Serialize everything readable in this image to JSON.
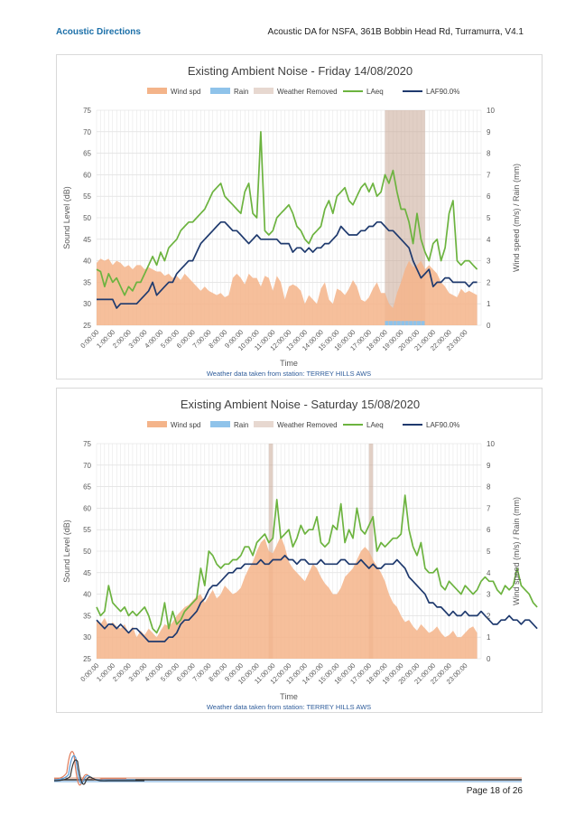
{
  "header": {
    "brand": "Acoustic Directions",
    "title": "Acoustic DA for NSFA, 361B Bobbin Head Rd, Turramurra, V4.1"
  },
  "footer": {
    "page": "Page 18 of 26"
  },
  "colors": {
    "wind": "#f4b48a",
    "rain": "#8fc3ea",
    "weather_removed": "#c9a896",
    "laeq": "#6cb33f",
    "laf90": "#1f3a6e"
  },
  "chart_data": [
    {
      "type": "line",
      "title": "Existing Ambient Noise - Friday 14/08/2020",
      "xlabel": "Time",
      "ylabel": "Sound Level (dB)",
      "y2label": "Wind speed (m/s) / Rain (mm)",
      "ylim": [
        25,
        75
      ],
      "y2lim": [
        0,
        10
      ],
      "yticks": [
        25,
        30,
        35,
        40,
        45,
        50,
        55,
        60,
        65,
        70,
        75
      ],
      "y2ticks": [
        0,
        1,
        2,
        3,
        4,
        5,
        6,
        7,
        8,
        9,
        10
      ],
      "xticks": [
        "0:00:00",
        "1:00:00",
        "2:00:00",
        "3:00:00",
        "4:00:00",
        "5:00:00",
        "6:00:00",
        "7:00:00",
        "8:00:00",
        "9:00:00",
        "10:00:00",
        "11:00:00",
        "12:00:00",
        "13:00:00",
        "14:00:00",
        "15:00:00",
        "16:00:00",
        "17:00:00",
        "18:00:00",
        "19:00:00",
        "20:00:00",
        "21:00:00",
        "22:00:00",
        "23:00:00"
      ],
      "legend": [
        "Wind spd",
        "Rain",
        "Weather Removed",
        "LAeq",
        "LAF90.0%"
      ],
      "legend_position": "top",
      "grid": true,
      "note": "Weather data taken from station: TERREY HILLS AWS",
      "weather_removed": [
        [
          18.0,
          20.5
        ]
      ],
      "rain": [
        [
          18.0,
          0.2
        ],
        [
          18.25,
          0.2
        ],
        [
          18.5,
          0.2
        ],
        [
          18.75,
          0.2
        ],
        [
          19.0,
          0.2
        ],
        [
          19.25,
          0.2
        ],
        [
          19.5,
          0.2
        ],
        [
          19.75,
          0.2
        ],
        [
          20.0,
          0.2
        ],
        [
          20.25,
          0.2
        ]
      ],
      "series": [
        {
          "name": "Wind spd",
          "x_step": 0.25,
          "values": [
            2.9,
            3.1,
            3.0,
            3.1,
            2.8,
            3.0,
            2.9,
            2.7,
            2.8,
            2.6,
            2.8,
            2.8,
            2.6,
            2.7,
            2.6,
            2.5,
            2.5,
            2.3,
            2.4,
            2.2,
            2.3,
            2.1,
            2.4,
            2.2,
            2.0,
            1.8,
            1.6,
            1.8,
            1.6,
            1.5,
            1.4,
            1.5,
            1.3,
            1.4,
            2.2,
            2.4,
            2.2,
            1.9,
            2.4,
            2.2,
            2.2,
            1.8,
            2.3,
            2.2,
            1.6,
            2.3,
            2.0,
            1.2,
            1.8,
            1.9,
            1.8,
            1.6,
            1.0,
            1.4,
            1.2,
            1.0,
            1.7,
            2.0,
            1.2,
            1.0,
            1.7,
            1.6,
            1.4,
            1.7,
            2.1,
            1.8,
            1.2,
            1.1,
            1.3,
            1.7,
            2.0,
            1.5,
            1.5,
            1.0,
            0.8,
            1.5,
            2.0,
            2.6,
            3.0,
            2.7,
            2.8,
            3.0,
            2.6,
            2.8,
            2.6,
            2.4,
            2.0,
            1.8,
            1.5,
            1.4,
            1.3,
            1.7,
            1.5,
            1.6,
            1.5,
            1.4
          ]
        },
        {
          "name": "LAeq",
          "x_step": 0.25,
          "values": [
            38,
            37.5,
            34,
            37,
            35,
            36,
            34,
            32,
            34,
            33,
            35,
            35,
            37,
            39,
            41,
            39,
            42,
            40,
            43,
            44,
            45,
            47,
            48,
            49,
            49,
            50,
            51,
            52,
            54,
            56,
            57,
            58,
            55,
            54,
            53,
            52,
            51,
            56,
            58,
            51,
            50,
            70,
            47,
            46,
            47,
            50,
            51,
            52,
            53,
            51,
            48,
            47,
            45,
            44,
            46,
            47,
            48,
            52,
            54,
            51,
            55,
            56,
            57,
            54,
            53,
            55,
            57,
            58,
            56,
            58,
            55,
            56,
            60,
            58,
            61,
            56,
            52,
            52,
            49,
            44,
            51,
            45,
            42,
            40,
            44,
            45,
            40,
            43,
            51,
            54,
            40,
            39,
            40,
            40,
            39,
            38
          ]
        },
        {
          "name": "LAF90.0%",
          "x_step": 0.25,
          "values": [
            31,
            31,
            31,
            31,
            31,
            29,
            30,
            30,
            30,
            30,
            30,
            31,
            32,
            33,
            35,
            32,
            33,
            34,
            35,
            35,
            37,
            38,
            39,
            40,
            40,
            42,
            44,
            45,
            46,
            47,
            48,
            49,
            49,
            48,
            47,
            47,
            46,
            45,
            44,
            45,
            46,
            45,
            45,
            45,
            45,
            45,
            44,
            44,
            44,
            42,
            43,
            43,
            42,
            43,
            42,
            43,
            43,
            44,
            44,
            45,
            46,
            48,
            47,
            46,
            46,
            46,
            47,
            47,
            48,
            48,
            49,
            49,
            48,
            47,
            47,
            46,
            45,
            44,
            43,
            40,
            38,
            36,
            37,
            38,
            34,
            35,
            35,
            36,
            36,
            35,
            35,
            35,
            35,
            34,
            35,
            35
          ]
        }
      ]
    },
    {
      "type": "line",
      "title": "Existing Ambient Noise - Saturday 15/08/2020",
      "xlabel": "Time",
      "ylabel": "Sound Level (dB)",
      "y2label": "Wind speed (m/s) / Rain (mm)",
      "ylim": [
        25,
        75
      ],
      "y2lim": [
        0,
        10
      ],
      "yticks": [
        25,
        30,
        35,
        40,
        45,
        50,
        55,
        60,
        65,
        70,
        75
      ],
      "y2ticks": [
        0,
        1,
        2,
        3,
        4,
        5,
        6,
        7,
        8,
        9,
        10
      ],
      "xticks": [
        "0:00:00",
        "1:00:00",
        "2:00:00",
        "3:00:00",
        "4:00:00",
        "5:00:00",
        "6:00:00",
        "7:00:00",
        "8:00:00",
        "9:00:00",
        "10:00:00",
        "11:00:00",
        "12:00:00",
        "13:00:00",
        "14:00:00",
        "15:00:00",
        "16:00:00",
        "17:00:00",
        "18:00:00",
        "19:00:00",
        "20:00:00",
        "21:00:00",
        "22:00:00",
        "23:00:00"
      ],
      "legend": [
        "Wind spd",
        "Rain",
        "Weather Removed",
        "LAeq",
        "LAF90.0%"
      ],
      "legend_position": "top",
      "grid": true,
      "note": "Weather data taken from station: TERREY HILLS AWS",
      "weather_removed": [
        [
          10.75,
          11.0
        ],
        [
          17.0,
          17.25
        ]
      ],
      "rain": [],
      "series": [
        {
          "name": "Wind spd",
          "x_step": 0.25,
          "values": [
            1.8,
            1.6,
            1.9,
            1.5,
            1.7,
            1.5,
            1.4,
            1.6,
            1.2,
            1.5,
            1.0,
            1.3,
            1.1,
            1.4,
            1.2,
            1.0,
            1.3,
            1.6,
            1.5,
            1.7,
            2.0,
            2.2,
            2.4,
            2.5,
            2.7,
            2.9,
            3.0,
            2.6,
            2.9,
            3.2,
            2.8,
            3.0,
            3.4,
            3.2,
            3.0,
            3.1,
            3.3,
            3.8,
            4.2,
            4.5,
            5.0,
            5.4,
            5.6,
            5.0,
            4.9,
            5.3,
            5.7,
            5.2,
            4.5,
            4.2,
            4.0,
            3.8,
            3.6,
            4.0,
            4.4,
            4.2,
            3.8,
            3.5,
            3.3,
            3.0,
            3.0,
            3.3,
            3.8,
            4.0,
            4.2,
            4.6,
            5.0,
            5.2,
            5.0,
            4.6,
            4.3,
            4.0,
            3.6,
            3.0,
            2.6,
            2.4,
            2.0,
            1.7,
            1.8,
            1.5,
            1.3,
            1.6,
            1.4,
            1.2,
            1.3,
            1.5,
            1.2,
            1.0,
            1.1,
            1.3,
            1.0,
            1.0,
            1.2,
            1.4,
            1.5,
            1.2
          ]
        },
        {
          "name": "LAeq",
          "x_step": 0.25,
          "values": [
            37,
            35,
            36,
            42,
            38,
            37,
            36,
            37,
            35,
            36,
            35,
            36,
            37,
            35,
            32,
            31,
            33,
            38,
            32,
            36,
            33,
            34,
            36,
            37,
            38,
            39,
            46,
            42,
            50,
            49,
            47,
            46,
            47,
            47,
            48,
            48,
            49,
            51,
            51,
            49,
            52,
            53,
            54,
            52,
            53,
            62,
            53,
            54,
            55,
            51,
            53,
            56,
            54,
            55,
            55,
            58,
            52,
            51,
            52,
            56,
            55,
            61,
            52,
            55,
            53,
            60,
            55,
            54,
            56,
            58,
            50,
            52,
            51,
            52,
            53,
            53,
            54,
            63,
            55,
            51,
            49,
            52,
            46,
            45,
            45,
            46,
            42,
            41,
            43,
            42,
            41,
            40,
            42,
            41,
            40,
            41,
            43,
            44,
            43,
            43,
            41,
            40,
            42,
            41,
            42,
            46,
            42,
            41,
            40,
            38,
            37
          ]
        },
        {
          "name": "LAF90.0%",
          "x_step": 0.25,
          "values": [
            34,
            33,
            32,
            33,
            33,
            32,
            33,
            32,
            31,
            32,
            32,
            31,
            30,
            29,
            29,
            29,
            29,
            29,
            30,
            30,
            31,
            33,
            34,
            34,
            35,
            36,
            38,
            39,
            41,
            42,
            42,
            43,
            44,
            45,
            45,
            46,
            46,
            47,
            47,
            47,
            47,
            48,
            47,
            47,
            48,
            48,
            48,
            49,
            48,
            48,
            47,
            48,
            48,
            47,
            47,
            47,
            48,
            47,
            47,
            47,
            47,
            48,
            48,
            47,
            47,
            47,
            48,
            47,
            46,
            47,
            46,
            46,
            47,
            47,
            47,
            48,
            47,
            46,
            44,
            43,
            42,
            41,
            40,
            38,
            38,
            37,
            37,
            36,
            35,
            36,
            35,
            35,
            36,
            35,
            35,
            35,
            36,
            35,
            34,
            33,
            33,
            34,
            34,
            35,
            34,
            34,
            33,
            34,
            34,
            33,
            32
          ]
        }
      ]
    }
  ]
}
